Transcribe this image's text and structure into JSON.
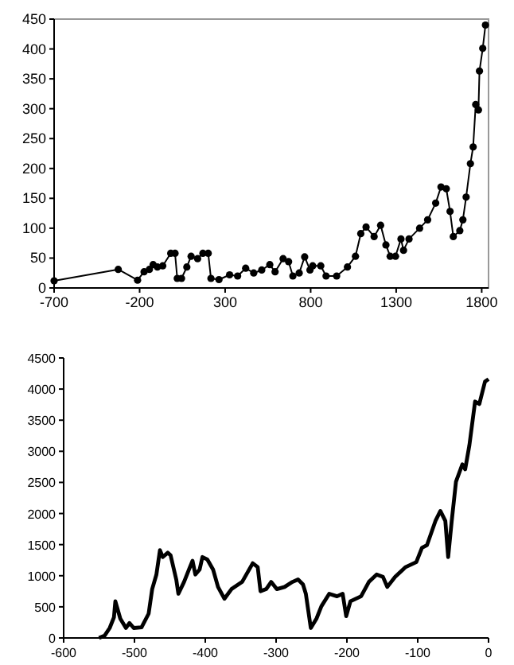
{
  "chart_data": [
    {
      "type": "line",
      "marker": "circle",
      "line_style": "solid",
      "grid": false,
      "xlim": [
        -700,
        1840
      ],
      "xticks": [
        -700,
        -200,
        300,
        800,
        1300,
        1800
      ],
      "ylim": [
        0,
        450
      ],
      "yticks": [
        0,
        50,
        100,
        150,
        200,
        250,
        300,
        350,
        400,
        450
      ],
      "series": [
        {
          "color": "#000000",
          "x": [
            -700,
            -325,
            -212,
            -174,
            -143,
            -121,
            -96,
            -65,
            -18,
            7,
            20,
            45,
            76,
            101,
            139,
            170,
            201,
            217,
            264,
            326,
            373,
            420,
            467,
            514,
            561,
            592,
            639,
            671,
            696,
            733,
            765,
            796,
            812,
            859,
            890,
            952,
            1015,
            1062,
            1093,
            1124,
            1171,
            1209,
            1240,
            1265,
            1296,
            1328,
            1343,
            1375,
            1437,
            1484,
            1531,
            1562,
            1593,
            1615,
            1634,
            1672,
            1690,
            1709,
            1734,
            1750,
            1765,
            1781,
            1787,
            1806,
            1822
          ],
          "values": [
            12,
            31,
            13,
            27,
            31,
            39,
            35,
            37,
            58,
            58,
            16,
            16,
            35,
            53,
            49,
            58,
            58,
            16,
            14,
            22,
            20,
            33,
            25,
            30,
            39,
            27,
            49,
            44,
            20,
            25,
            52,
            30,
            37,
            37,
            20,
            20,
            35,
            53,
            91,
            102,
            86,
            105,
            72,
            53,
            53,
            82,
            63,
            82,
            100,
            114,
            142,
            169,
            166,
            128,
            86,
            96,
            114,
            152,
            208,
            236,
            307,
            298,
            363,
            401,
            440
          ]
        }
      ]
    },
    {
      "type": "line",
      "marker": "none",
      "line_style": "solid",
      "grid": false,
      "xlim": [
        -600,
        0
      ],
      "xticks": [
        -600,
        -500,
        -400,
        -300,
        -200,
        -100,
        0
      ],
      "ylim": [
        0,
        4500
      ],
      "yticks": [
        0,
        500,
        1000,
        1500,
        2000,
        2500,
        3000,
        3500,
        4000,
        4500
      ],
      "series": [
        {
          "color": "#000000",
          "x": [
            -550,
            -542,
            -535,
            -529,
            -527,
            -520,
            -512,
            -507,
            -501,
            -490,
            -480,
            -475,
            -469,
            -464,
            -460,
            -453,
            -449,
            -441,
            -438,
            -430,
            -423,
            -418,
            -414,
            -408,
            -404,
            -397,
            -389,
            -382,
            -373,
            -363,
            -348,
            -333,
            -326,
            -322,
            -314,
            -307,
            -299,
            -288,
            -277,
            -269,
            -262,
            -258,
            -251,
            -243,
            -236,
            -225,
            -214,
            -206,
            -201,
            -195,
            -180,
            -169,
            -158,
            -149,
            -143,
            -132,
            -117,
            -102,
            -94,
            -87,
            -75,
            -68,
            -61,
            -57,
            -52,
            -46,
            -37,
            -33,
            -27,
            -19,
            -13,
            -5,
            0
          ],
          "values": [
            0,
            40,
            160,
            330,
            590,
            310,
            160,
            240,
            160,
            170,
            390,
            785,
            1020,
            1410,
            1300,
            1370,
            1330,
            940,
            710,
            900,
            1100,
            1240,
            1020,
            1100,
            1300,
            1260,
            1100,
            820,
            630,
            785,
            900,
            1200,
            1140,
            750,
            785,
            900,
            785,
            820,
            900,
            940,
            860,
            710,
            160,
            310,
            510,
            710,
            670,
            710,
            350,
            590,
            670,
            900,
            1020,
            980,
            820,
            980,
            1140,
            1220,
            1450,
            1490,
            1880,
            2040,
            1880,
            1300,
            1880,
            2510,
            2790,
            2710,
            3100,
            3800,
            3760,
            4120,
            4160
          ]
        }
      ]
    }
  ]
}
